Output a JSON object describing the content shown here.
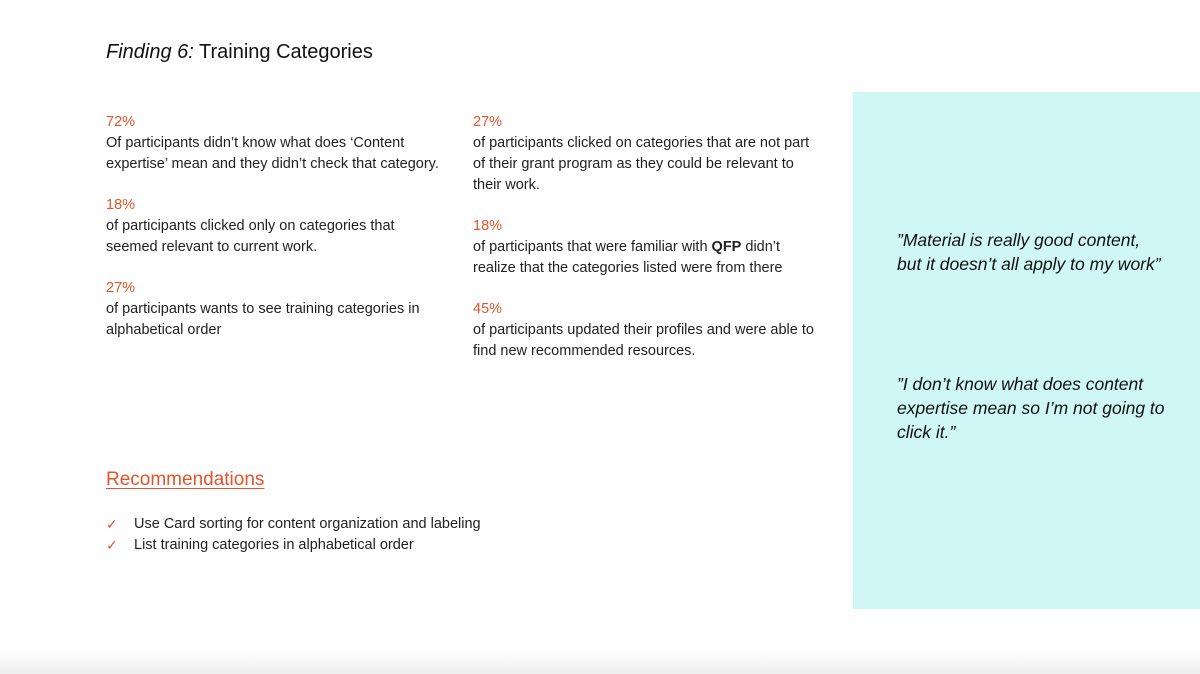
{
  "title": {
    "prefix": "Finding 6:",
    "main": " Training Categories"
  },
  "stats_left": [
    {
      "pct": "72%",
      "text": "Of participants didn’t know what does ‘Content expertise’ mean and they didn’t check that category."
    },
    {
      "pct": "18%",
      "text": "of participants clicked only on categories that seemed relevant to current work."
    },
    {
      "pct": "27%",
      "text": "of participants wants to see training categories in alphabetical order"
    }
  ],
  "stats_right": [
    {
      "pct": "27%",
      "text": "of participants clicked on categories that are not part of their grant program as they could be relevant to their work."
    },
    {
      "pct": "18%",
      "text_before": "of participants that were familiar with ",
      "text_bold": "QFP",
      "text_after": " didn’t realize that the categories listed were from there"
    },
    {
      "pct": "45%",
      "text": "of participants updated their profiles and were able to find new recommended resources."
    }
  ],
  "recommendations": {
    "heading": "Recommendations",
    "check_icon": "✓",
    "items": [
      "Use Card sorting for content organization and labeling",
      "List training categories in alphabetical order"
    ]
  },
  "quotes": [
    "”Material is really good content, but it doesn’t all apply to my work”",
    "”I don’t know what does content expertise mean so I’m not going to click it.”"
  ],
  "colors": {
    "accent": "#e0552b",
    "quote_panel": "#cff7f6"
  }
}
